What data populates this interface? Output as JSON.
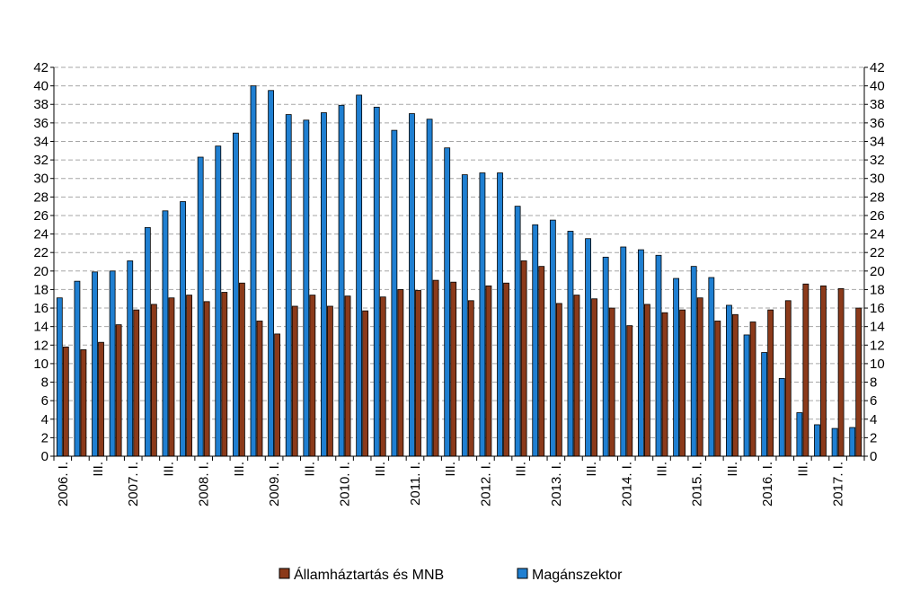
{
  "chart_data": {
    "type": "bar",
    "title": "",
    "xlabel": "",
    "ylabel": "",
    "ylim": [
      0,
      42
    ],
    "ytick_step": 2,
    "y_axis_right": true,
    "grid": true,
    "legend_position": "bottom",
    "categories": [
      "2006. I.",
      "",
      "III.",
      "",
      "2007. I.",
      "",
      "III.",
      "",
      "2008. I.",
      "",
      "III.",
      "",
      "2009. I.",
      "",
      "III.",
      "",
      "2010. I.",
      "",
      "III.",
      "",
      "2011. I.",
      "",
      "III.",
      "",
      "2012. I.",
      "",
      "III.",
      "",
      "2013. I.",
      "",
      "III.",
      "",
      "2014. I.",
      "",
      "III.",
      "",
      "2015. I.",
      "",
      "III.",
      "",
      "2016. I.",
      "",
      "III.",
      "",
      "2017. I.",
      ""
    ],
    "series": [
      {
        "name": "Államháztartás és MNB",
        "color": "#8B3A1A",
        "values": [
          11.8,
          11.5,
          12.3,
          14.2,
          15.8,
          16.4,
          17.1,
          17.4,
          16.7,
          17.7,
          18.7,
          14.6,
          13.2,
          16.2,
          17.4,
          16.2,
          17.3,
          15.7,
          17.2,
          18.0,
          17.9,
          19.0,
          18.8,
          16.8,
          18.4,
          18.7,
          21.1,
          20.5,
          16.5,
          17.4,
          17.0,
          16.0,
          14.1,
          16.4,
          15.5,
          15.8,
          17.1,
          14.6,
          15.3,
          14.5,
          15.8,
          16.8,
          18.6,
          18.4,
          18.1,
          16.0
        ]
      },
      {
        "name": "Magánszektor",
        "color": "#1F7FD1",
        "values": [
          17.1,
          18.9,
          19.9,
          20.0,
          21.1,
          24.7,
          26.5,
          27.5,
          32.3,
          33.5,
          34.9,
          40.0,
          39.5,
          36.9,
          36.3,
          37.1,
          37.9,
          39.0,
          37.7,
          35.2,
          37.0,
          36.4,
          33.3,
          30.4,
          30.6,
          30.6,
          27.0,
          25.0,
          25.5,
          24.3,
          23.5,
          21.5,
          22.6,
          22.3,
          21.7,
          19.2,
          20.5,
          19.3,
          16.3,
          13.1,
          11.2,
          8.4,
          4.7,
          3.4,
          3.0,
          3.1
        ]
      }
    ]
  },
  "legend": {
    "items": [
      {
        "label": "Államháztartás és MNB",
        "color": "#8B3A1A"
      },
      {
        "label": "Magánszektor",
        "color": "#1F7FD1"
      }
    ]
  }
}
